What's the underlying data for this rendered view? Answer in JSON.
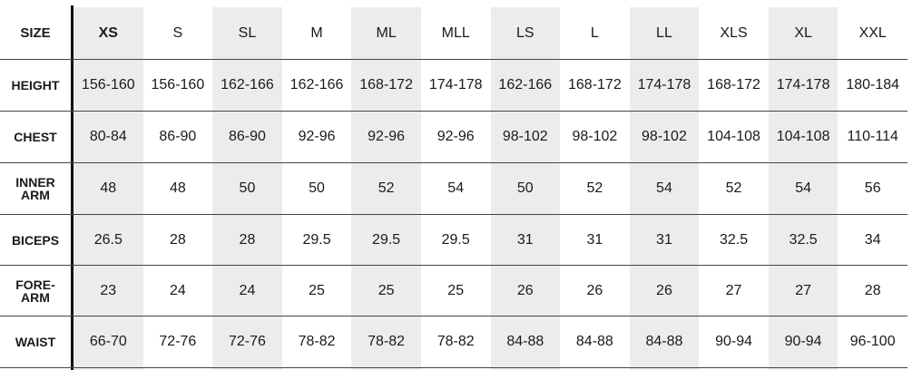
{
  "table": {
    "header": [
      "SIZE",
      "XS",
      "S",
      "SL",
      "M",
      "ML",
      "MLL",
      "LS",
      "L",
      "LL",
      "XLS",
      "XL",
      "XXL"
    ],
    "rows": [
      {
        "label": [
          "HEIGHT"
        ],
        "cells": [
          "156-160",
          "156-160",
          "162-166",
          "162-166",
          "168-172",
          "174-178",
          "162-166",
          "168-172",
          "174-178",
          "168-172",
          "174-178",
          "180-184"
        ]
      },
      {
        "label": [
          "CHEST"
        ],
        "cells": [
          "80-84",
          "86-90",
          "86-90",
          "92-96",
          "92-96",
          "92-96",
          "98-102",
          "98-102",
          "98-102",
          "104-108",
          "104-108",
          "110-114"
        ]
      },
      {
        "label": [
          "INNER",
          "ARM"
        ],
        "cells": [
          "48",
          "48",
          "50",
          "50",
          "52",
          "54",
          "50",
          "52",
          "54",
          "52",
          "54",
          "56"
        ]
      },
      {
        "label": [
          "BICEPS"
        ],
        "cells": [
          "26.5",
          "28",
          "28",
          "29.5",
          "29.5",
          "29.5",
          "31",
          "31",
          "31",
          "32.5",
          "32.5",
          "34"
        ]
      },
      {
        "label": [
          "FORE-",
          "ARM"
        ],
        "cells": [
          "23",
          "24",
          "24",
          "25",
          "25",
          "25",
          "26",
          "26",
          "26",
          "27",
          "27",
          "28"
        ]
      },
      {
        "label": [
          "WAIST"
        ],
        "cells": [
          "66-70",
          "72-76",
          "72-76",
          "78-82",
          "78-82",
          "78-82",
          "84-88",
          "84-88",
          "84-88",
          "90-94",
          "90-94",
          "96-100"
        ]
      }
    ]
  }
}
